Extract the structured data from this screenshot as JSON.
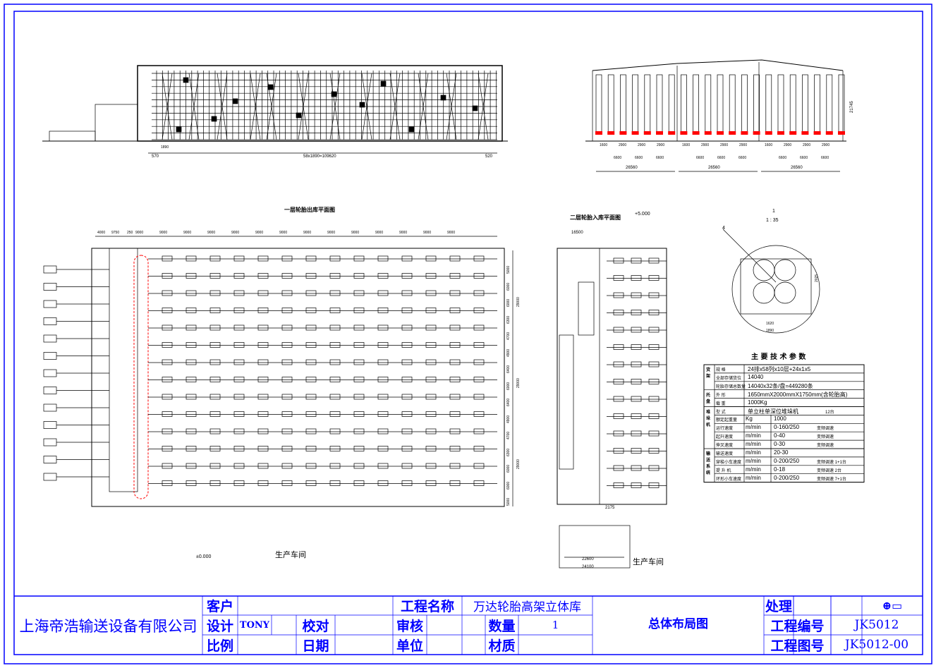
{
  "colors": {
    "frame": "#0000ff",
    "line": "#000000",
    "highlight": "#ff0000"
  },
  "elevation": {
    "bottom_dims": [
      "570",
      "58x1890=109620",
      "520"
    ],
    "bay_dim": "1890"
  },
  "section": {
    "bay_dims": [
      "1600",
      "2900",
      "2900",
      "2900"
    ],
    "aisle_dims": [
      "6600",
      "6600",
      "6600"
    ],
    "span_dims": [
      "26560",
      "26560",
      "26560"
    ],
    "height_dim": "21745"
  },
  "plan1": {
    "title": "一层轮胎出库平面图",
    "top_dims": [
      "4000",
      "9750",
      "250",
      "9000",
      "9000",
      "9000",
      "9000",
      "9000",
      "9000",
      "9000",
      "9000",
      "9000",
      "9000",
      "9000",
      "9000",
      "9000",
      "9000"
    ],
    "right_dims": [
      "5000",
      "6000",
      "6000",
      "6300",
      "4700",
      "4900",
      "6400",
      "6000",
      "6400",
      "4900",
      "4700",
      "6300",
      "6000",
      "6000",
      "5000"
    ],
    "group_dims": [
      "29000",
      "29000",
      "29000"
    ],
    "label_bottom": "生产车间",
    "level_mark": "±0.000"
  },
  "plan2": {
    "title": "二层轮胎入库平面图",
    "level_mark": "+5.000",
    "top_dim": "16500",
    "bottom_dims": [
      "22600",
      "24100"
    ],
    "side_dim": "2175",
    "label_bottom": "生产车间"
  },
  "detail": {
    "number": "1",
    "scale": "1 : 35",
    "leader": "4",
    "dims": [
      "1620",
      "1890",
      "2025"
    ]
  },
  "tech_table": {
    "title": "主 要 技 术 参 数",
    "groups": [
      "货架",
      "托盘",
      "堆垛机",
      "输送系统"
    ],
    "rows": [
      {
        "label": "规 格",
        "unit": "",
        "value": "24排x58列x10层+24x1x5",
        "note": ""
      },
      {
        "label": "全部存储货位",
        "unit": "",
        "value": "14040",
        "note": ""
      },
      {
        "label": "轮胎存储总数量",
        "unit": "",
        "value": "14040x32条/盘=449280条",
        "note": ""
      },
      {
        "label": "外 形",
        "unit": "",
        "value": "1650mmX2000mmX1750mm(含轮胎高)",
        "note": ""
      },
      {
        "label": "载 重",
        "unit": "",
        "value": "1000Kg",
        "note": ""
      },
      {
        "label": "型 式",
        "unit": "",
        "value": "单立柱单深位堆垛机",
        "note": "12台"
      },
      {
        "label": "额定起重量",
        "unit": "Kg",
        "value": "1000",
        "note": ""
      },
      {
        "label": "运行速度",
        "unit": "m/min",
        "value": "0-160/250",
        "note": "变频调速"
      },
      {
        "label": "起升速度",
        "unit": "m/min",
        "value": "0-40",
        "note": "变频调速"
      },
      {
        "label": "伸叉速度",
        "unit": "m/min",
        "value": "0-30",
        "note": "变频调速"
      },
      {
        "label": "输送速度",
        "unit": "m/min",
        "value": "20-30",
        "note": ""
      },
      {
        "label": "穿梭小车速度",
        "unit": "m/min",
        "value": "0-200/250",
        "note": "变频调速 1+1台"
      },
      {
        "label": "提 升 机",
        "unit": "m/min",
        "value": "0-18",
        "note": "变频调速 2台"
      },
      {
        "label": "环形小车速度",
        "unit": "m/min",
        "value": "0-200/250",
        "note": "变频调速 7+1台"
      }
    ]
  },
  "title_block": {
    "company": "上海帝浩输送设备有限公司",
    "customer_label": "客户",
    "customer": "",
    "project_name_label": "工程名称",
    "project_name": "万达轮胎高架立体库",
    "designer_label": "设计",
    "designer": "TONY",
    "checker_label": "校对",
    "reviewer_label": "审核",
    "quantity_label": "数量",
    "quantity": "1",
    "scale_label": "比例",
    "date_label": "日期",
    "unit_label": "单位",
    "material_label": "材质",
    "drawing_title": "总体布局图",
    "process_label": "处理",
    "project_no_label": "工程编号",
    "project_no": "JK5012",
    "drawing_no_label": "工程图号",
    "drawing_no": "JK5012-00",
    "projection_icon": "first-angle-projection-icon"
  }
}
